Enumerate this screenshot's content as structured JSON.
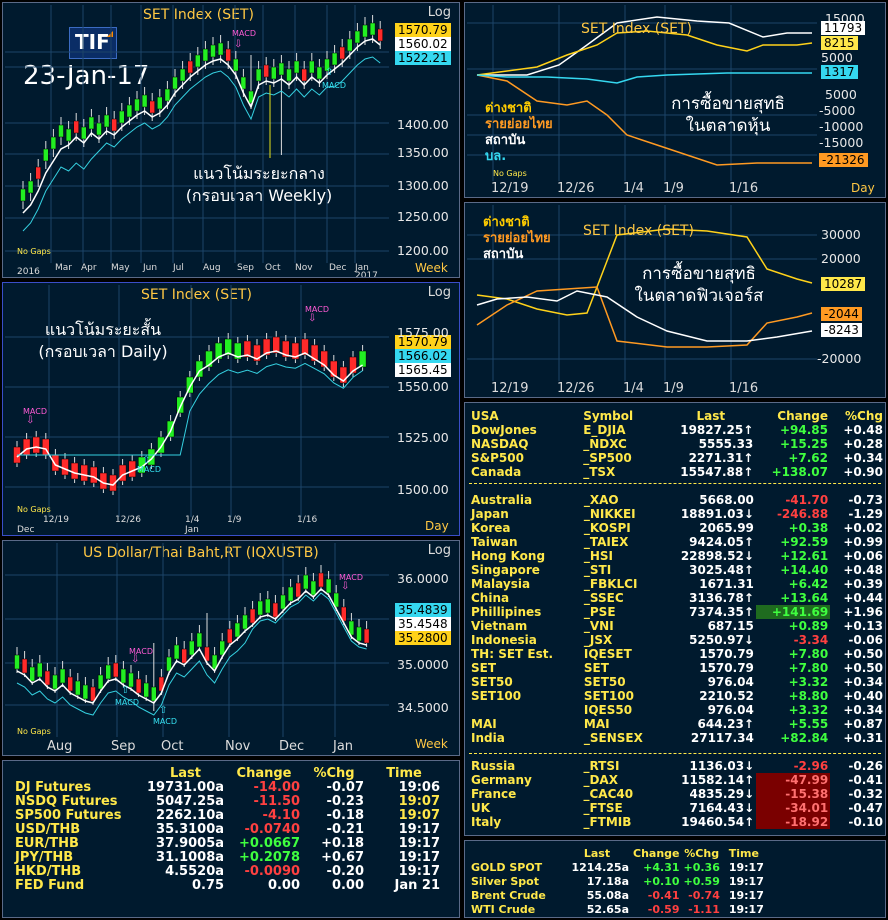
{
  "badge": {
    "logo": "TIF",
    "date": "23-Jan-17"
  },
  "weekly": {
    "title": "SET Index (SET)",
    "log": "Log",
    "annotation_line1": "แนวโน้มระยะกลาง",
    "annotation_line2": "(กรอบเวลา Weekly)",
    "tags": [
      "1570.79",
      "1560.02",
      "1522.21"
    ],
    "yticks": [
      "1400.00",
      "1350.00",
      "1300.00",
      "1250.00",
      "1200.00"
    ],
    "months": [
      "2016",
      "Mar",
      "Apr",
      "May",
      "Jun",
      "Jul",
      "Aug",
      "Sep",
      "Oct",
      "Nov",
      "Dec",
      "Jan",
      "2017"
    ],
    "macd": [
      "MACD",
      "MACD"
    ],
    "no_gaps": "No Gaps",
    "unit": "Week"
  },
  "daily": {
    "title": "SET Index (SET)",
    "log": "Log",
    "annotation_line1": "แนวโน้มระยะสั้น",
    "annotation_line2": "(กรอบเวลา Daily)",
    "tags": [
      "1570.79",
      "1566.02",
      "1565.45"
    ],
    "yticks": [
      "1575.00",
      "1550.00",
      "1525.00",
      "1500.00"
    ],
    "dates": [
      "12/19",
      "12/26",
      "1/4",
      "1/9",
      "1/16"
    ],
    "sub": [
      "Dec",
      "Jan"
    ],
    "macd": [
      "MACD",
      "MACD",
      "MACD"
    ],
    "no_gaps": "No Gaps",
    "unit": "Day"
  },
  "usdthb": {
    "title": "US Dollar/Thai Baht,RT (IQXUSTB)",
    "log": "Log",
    "tags": [
      "35.4839",
      "35.4548",
      "35.2800"
    ],
    "yticks": [
      "36.0000",
      "35.0000",
      "34.5000"
    ],
    "months": [
      "Aug",
      "Sep",
      "Oct",
      "Nov",
      "Dec",
      "Jan"
    ],
    "macd": [
      "MACD",
      "MACD",
      "MACD",
      "MACD"
    ],
    "no_gaps": "No Gaps",
    "unit": "Week"
  },
  "flows_equity": {
    "title": "SET Index (SET)",
    "legend": [
      "ต่างชาติ",
      "รายย่อยไทย",
      "สถาบัน",
      "บล."
    ],
    "annotation_line1": "การซื้อขายสุทธิ",
    "annotation_line2": "ในตลาดหุ้น",
    "yticks": [
      "15000",
      "5000",
      "-5000",
      "-10000",
      "-15000",
      "-20000"
    ],
    "tags": [
      "11793",
      "8215",
      "5000",
      "1317",
      "-21326"
    ],
    "dates": [
      "12/19",
      "12/26",
      "1/4",
      "1/9",
      "1/16"
    ],
    "no_gaps": "No Gaps",
    "unit": "Day"
  },
  "flows_futures": {
    "title": "SET Index (SET)",
    "legend": [
      "ต่างชาติ",
      "รายย่อยไทย",
      "สถาบัน"
    ],
    "annotation_line1": "การซื้อขายสุทธิ",
    "annotation_line2": "ในตลาดฟิวเจอร์ส",
    "yticks": [
      "30000",
      "20000",
      "-20000"
    ],
    "tags": [
      "10287",
      "-2044",
      "-8243"
    ],
    "dates": [
      "12/19",
      "12/26",
      "1/4",
      "1/9",
      "1/16"
    ]
  },
  "futures_table": {
    "headers": [
      "Last",
      "Change",
      "%Chg",
      "Time"
    ],
    "rows": [
      {
        "name": "DJ  Futures",
        "last": "19731.00a",
        "chg": "-14.00",
        "pct": "-0.07",
        "time": "19:06",
        "dir": "down",
        "tcol": "w"
      },
      {
        "name": "NSDQ Futures",
        "last": "5047.25a",
        "chg": "-11.50",
        "pct": "-0.23",
        "time": "19:07",
        "dir": "down",
        "tcol": "y"
      },
      {
        "name": "SP500  Futures",
        "last": "2262.10a",
        "chg": "-4.10",
        "pct": "-0.18",
        "time": "19:07",
        "dir": "down",
        "tcol": "y"
      },
      {
        "name": "USD/THB",
        "last": "35.3100a",
        "chg": "-0.0740",
        "pct": "-0.21",
        "time": "19:17",
        "dir": "down",
        "tcol": "w"
      },
      {
        "name": "EUR/THB",
        "last": "37.9005a",
        "chg": "+0.0667",
        "pct": "+0.18",
        "time": "19:17",
        "dir": "up",
        "tcol": "w"
      },
      {
        "name": "JPY/THB",
        "last": "31.1008a",
        "chg": "+0.2078",
        "pct": "+0.67",
        "time": "19:17",
        "dir": "up",
        "tcol": "w"
      },
      {
        "name": "HKD/THB",
        "last": "4.5520a",
        "chg": "-0.0090",
        "pct": "-0.20",
        "time": "19:17",
        "dir": "down",
        "tcol": "w"
      },
      {
        "name": "FED  Fund",
        "last": "0.75",
        "chg": "0.00",
        "pct": "0.00",
        "time": "Jan  21",
        "dir": "flat",
        "tcol": "w"
      }
    ]
  },
  "markets": {
    "headers": [
      "Symbol",
      "Last",
      "Change",
      "%Chg"
    ],
    "usa_label": "USA",
    "usa": [
      {
        "name": " DowJones",
        "sym": "E_DJIA",
        "last": "19827.25↑",
        "chg": "+94.85",
        "pct": "+0.48",
        "dir": "up"
      },
      {
        "name": "  NASDAQ",
        "sym": "_NDXC",
        "last": "5555.33",
        "chg": "+15.25",
        "pct": "+0.28",
        "dir": "up"
      },
      {
        "name": "  S&P500",
        "sym": "_SP500",
        "last": "2271.31↑",
        "chg": "+7.62",
        "pct": "+0.34",
        "dir": "up"
      },
      {
        "name": "Canada",
        "sym": "_TSX",
        "last": "15547.88↑",
        "chg": "+138.07",
        "pct": "+0.90",
        "dir": "up"
      }
    ],
    "asia": [
      {
        "name": "Australia",
        "sym": "_XAO",
        "last": "5668.00",
        "chg": "-41.70",
        "pct": "-0.73",
        "dir": "down"
      },
      {
        "name": "Japan",
        "sym": "_NIKKEI",
        "last": "18891.03↓",
        "chg": "-246.88",
        "pct": "-1.29",
        "dir": "down"
      },
      {
        "name": "Korea",
        "sym": "_KOSPI",
        "last": "2065.99",
        "chg": "+0.38",
        "pct": "+0.02",
        "dir": "up"
      },
      {
        "name": "Taiwan",
        "sym": "_TAIEX",
        "last": "9424.05↑",
        "chg": "+92.59",
        "pct": "+0.99",
        "dir": "up"
      },
      {
        "name": "Hong  Kong",
        "sym": "_HSI",
        "last": "22898.52↓",
        "chg": "+12.61",
        "pct": "+0.06",
        "dir": "up"
      },
      {
        "name": "Singapore",
        "sym": "_STI",
        "last": "3025.48↑",
        "chg": "+14.40",
        "pct": "+0.48",
        "dir": "up"
      },
      {
        "name": "Malaysia",
        "sym": "_FBKLCI",
        "last": "1671.31",
        "chg": "+6.42",
        "pct": "+0.39",
        "dir": "up"
      },
      {
        "name": "China",
        "sym": "_SSEC",
        "last": "3136.78↑",
        "chg": "+13.64",
        "pct": "+0.44",
        "dir": "up"
      },
      {
        "name": "Phillipines",
        "sym": "_PSE",
        "last": "7374.35↑",
        "chg": "+141.69",
        "pct": "+1.96",
        "dir": "up",
        "hl": true
      },
      {
        "name": "Vietnam",
        "sym": "_VNI",
        "last": "687.15",
        "chg": "+0.89",
        "pct": "+0.13",
        "dir": "up"
      },
      {
        "name": "Indonesia",
        "sym": "_JSX",
        "last": "5250.97↓",
        "chg": "-3.34",
        "pct": "-0.06",
        "dir": "down"
      },
      {
        "name": "TH:  SET  Est.",
        "sym": "IQESET",
        "last": "1570.79",
        "chg": "+7.80",
        "pct": "+0.50",
        "dir": "up"
      },
      {
        "name": "  SET",
        "sym": "SET",
        "last": "1570.79",
        "chg": "+7.80",
        "pct": "+0.50",
        "dir": "up"
      },
      {
        "name": "  SET50",
        "sym": "SET50",
        "last": "976.04",
        "chg": "+3.32",
        "pct": "+0.34",
        "dir": "up"
      },
      {
        "name": "  SET100",
        "sym": "SET100",
        "last": "2210.52",
        "chg": "+8.80",
        "pct": "+0.40",
        "dir": "up"
      },
      {
        "name": "",
        "sym": "IQES50",
        "last": "976.04",
        "chg": "+3.32",
        "pct": "+0.34",
        "dir": "up"
      },
      {
        "name": "   MAI",
        "sym": "MAI",
        "last": "644.23↑",
        "chg": "+5.55",
        "pct": "+0.87",
        "dir": "up"
      },
      {
        "name": "India",
        "sym": "_SENSEX",
        "last": "27117.34",
        "chg": "+82.84",
        "pct": "+0.31",
        "dir": "up"
      }
    ],
    "europe": [
      {
        "name": "Russia",
        "sym": "_RTSI",
        "last": "1136.03↓",
        "chg": "-2.96",
        "pct": "-0.26",
        "dir": "down"
      },
      {
        "name": "Germany",
        "sym": "_DAX",
        "last": "11582.14↑",
        "chg": "-47.99",
        "pct": "-0.41",
        "dir": "down",
        "hl": true
      },
      {
        "name": "France",
        "sym": "_CAC40",
        "last": "4835.29↓",
        "chg": "-15.38",
        "pct": "-0.32",
        "dir": "down",
        "hl": true
      },
      {
        "name": "UK",
        "sym": "_FTSE",
        "last": "7164.43↓",
        "chg": "-34.01",
        "pct": "-0.47",
        "dir": "down",
        "hl": true
      },
      {
        "name": "Italy",
        "sym": "_FTMIB",
        "last": "19460.54↑",
        "chg": "-18.92",
        "pct": "-0.10",
        "dir": "down",
        "hl": true
      }
    ]
  },
  "commodities": {
    "headers": [
      "Last",
      "Change",
      "%Chg",
      "Time"
    ],
    "rows": [
      {
        "name": "GOLD  SPOT",
        "last": "1214.25a",
        "chg": "+4.31",
        "pct": "+0.36",
        "time": "19:17",
        "dir": "up"
      },
      {
        "name": "Silver  Spot",
        "last": "17.18a",
        "chg": "+0.10",
        "pct": "+0.59",
        "time": "19:17",
        "dir": "up"
      },
      {
        "name": "Brent  Crude",
        "last": "55.08a",
        "chg": "-0.41",
        "pct": "-0.74",
        "time": "19:17",
        "dir": "down"
      },
      {
        "name": "WTI  Crude",
        "last": "52.65a",
        "chg": "-0.59",
        "pct": "-1.11",
        "time": "19:17",
        "dir": "down"
      }
    ]
  }
}
